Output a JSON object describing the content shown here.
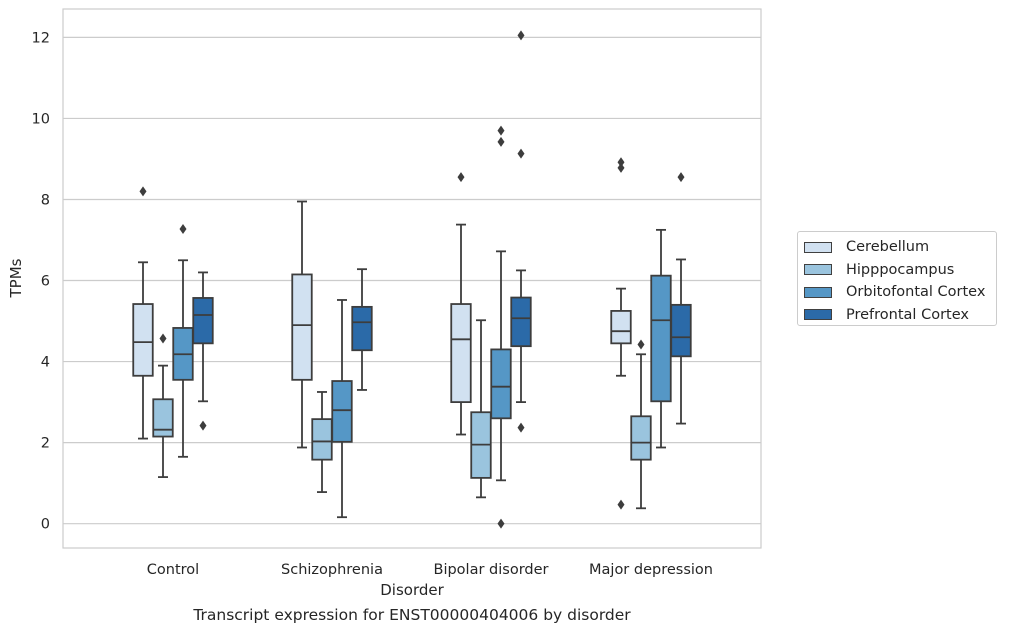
{
  "caption": "Transcript expression for ENST00000404006 by disorder",
  "chart_data": {
    "type": "box",
    "xlabel": "Disorder",
    "ylabel": "TPMs",
    "ylim": [
      -0.6,
      12.7
    ],
    "yticks": [
      0,
      2,
      4,
      6,
      8,
      10,
      12
    ],
    "grid": true,
    "legend_placement": "right",
    "categories": [
      "Control",
      "Schizophrenia",
      "Bipolar disorder",
      "Major depression"
    ],
    "series": [
      {
        "name": "Cerebellum",
        "color": "#d1e1f1",
        "boxes": [
          {
            "whislo": 2.1,
            "q1": 3.65,
            "med": 4.48,
            "q3": 5.42,
            "whishi": 6.45,
            "fliers": [
              8.2
            ]
          },
          {
            "whislo": 1.88,
            "q1": 3.55,
            "med": 4.9,
            "q3": 6.15,
            "whishi": 7.95,
            "fliers": []
          },
          {
            "whislo": 2.2,
            "q1": 3.0,
            "med": 4.55,
            "q3": 5.42,
            "whishi": 7.38,
            "fliers": [
              8.55
            ]
          },
          {
            "whislo": 3.65,
            "q1": 4.45,
            "med": 4.75,
            "q3": 5.25,
            "whishi": 5.8,
            "fliers": [
              8.78,
              8.92,
              0.47
            ]
          }
        ]
      },
      {
        "name": "Hipppocampus",
        "color": "#9ac4de",
        "boxes": [
          {
            "whislo": 1.15,
            "q1": 2.15,
            "med": 2.32,
            "q3": 3.07,
            "whishi": 3.9,
            "fliers": [
              4.57
            ]
          },
          {
            "whislo": 0.78,
            "q1": 1.58,
            "med": 2.03,
            "q3": 2.58,
            "whishi": 3.25,
            "fliers": []
          },
          {
            "whislo": 0.65,
            "q1": 1.13,
            "med": 1.95,
            "q3": 2.75,
            "whishi": 5.02,
            "fliers": []
          },
          {
            "whislo": 0.38,
            "q1": 1.58,
            "med": 2.0,
            "q3": 2.65,
            "whishi": 4.18,
            "fliers": [
              4.42
            ]
          }
        ]
      },
      {
        "name": "Orbitofontal Cortex",
        "color": "#5597c6",
        "boxes": [
          {
            "whislo": 1.65,
            "q1": 3.55,
            "med": 4.18,
            "q3": 4.83,
            "whishi": 6.5,
            "fliers": [
              7.27
            ]
          },
          {
            "whislo": 0.16,
            "q1": 2.02,
            "med": 2.8,
            "q3": 3.52,
            "whishi": 5.52,
            "fliers": []
          },
          {
            "whislo": 1.07,
            "q1": 2.6,
            "med": 3.38,
            "q3": 4.3,
            "whishi": 6.72,
            "fliers": [
              9.7,
              9.42,
              0.0
            ]
          },
          {
            "whislo": 1.88,
            "q1": 3.02,
            "med": 5.02,
            "q3": 6.12,
            "whishi": 7.25,
            "fliers": []
          }
        ]
      },
      {
        "name": "Prefrontal Cortex",
        "color": "#2b6aa8",
        "boxes": [
          {
            "whislo": 3.02,
            "q1": 4.45,
            "med": 5.15,
            "q3": 5.57,
            "whishi": 6.2,
            "fliers": [
              2.42
            ]
          },
          {
            "whislo": 3.3,
            "q1": 4.28,
            "med": 4.97,
            "q3": 5.35,
            "whishi": 6.28,
            "fliers": []
          },
          {
            "whislo": 3.0,
            "q1": 4.38,
            "med": 5.07,
            "q3": 5.58,
            "whishi": 6.25,
            "fliers": [
              12.05,
              9.13,
              2.37
            ]
          },
          {
            "whislo": 2.47,
            "q1": 4.13,
            "med": 4.6,
            "q3": 5.4,
            "whishi": 6.52,
            "fliers": [
              8.55
            ]
          }
        ]
      }
    ]
  }
}
